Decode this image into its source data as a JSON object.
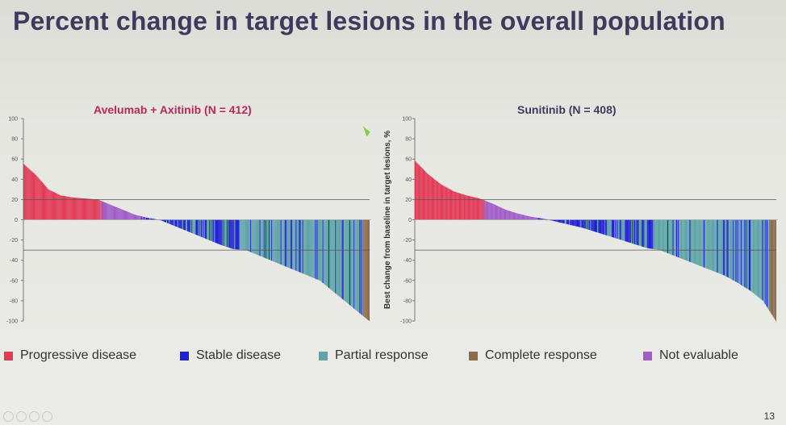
{
  "slide": {
    "title": "Percent change in target lesions in the overall population",
    "page_number": "13"
  },
  "legend": [
    {
      "label": "Progressive disease",
      "color": "#e23a55"
    },
    {
      "label": "Stable disease",
      "color": "#1f1fd6"
    },
    {
      "label": "Partial response",
      "color": "#5fa5a8"
    },
    {
      "label": "Complete response",
      "color": "#8c6a4a"
    },
    {
      "label": "Not evaluable",
      "color": "#a15cc8"
    }
  ],
  "chart_data": [
    {
      "type": "bar",
      "title": "Avelumab + Axitinib (N = 412)",
      "ylabel": "",
      "ylim": [
        -100,
        100
      ],
      "yticks": [
        "100",
        "80",
        "60",
        "40",
        "20",
        "0",
        "-20",
        "-40",
        "-60",
        "-80",
        "-100"
      ],
      "reference_lines": [
        20,
        -30
      ],
      "n_patients": 412,
      "series": [
        {
          "name": "Progressive disease",
          "values": [
            55,
            44,
            30,
            24,
            22,
            21,
            20
          ]
        },
        {
          "name": "Not evaluable",
          "values": [
            15,
            10,
            5
          ]
        },
        {
          "name": "Stable disease",
          "values": [
            2,
            0,
            -5,
            -10,
            -15,
            -20,
            -25,
            -29
          ]
        },
        {
          "name": "Partial response",
          "values": [
            -30,
            -35,
            -40,
            -45,
            -50,
            -55,
            -60,
            -70,
            -80,
            -90
          ]
        },
        {
          "name": "Complete response",
          "values": [
            -100
          ]
        }
      ]
    },
    {
      "type": "bar",
      "title": "Sunitinib (N = 408)",
      "ylabel": "Best change from baseline in target lesions, %",
      "ylim": [
        -100,
        100
      ],
      "yticks": [
        "100",
        "80",
        "60",
        "40",
        "20",
        "0",
        "-20",
        "-40",
        "-60",
        "-80",
        "-100"
      ],
      "reference_lines": [
        20,
        -30
      ],
      "n_patients": 408,
      "series": [
        {
          "name": "Progressive disease",
          "values": [
            58,
            45,
            35,
            28,
            24,
            21
          ]
        },
        {
          "name": "Not evaluable",
          "values": [
            16,
            10,
            6,
            3
          ]
        },
        {
          "name": "Stable disease",
          "values": [
            1,
            -2,
            -5,
            -8,
            -12,
            -16,
            -20,
            -24,
            -28
          ]
        },
        {
          "name": "Partial response",
          "values": [
            -30,
            -35,
            -40,
            -45,
            -50,
            -55,
            -62,
            -70,
            -80
          ]
        },
        {
          "name": "Complete response",
          "values": [
            -100
          ]
        }
      ]
    }
  ]
}
